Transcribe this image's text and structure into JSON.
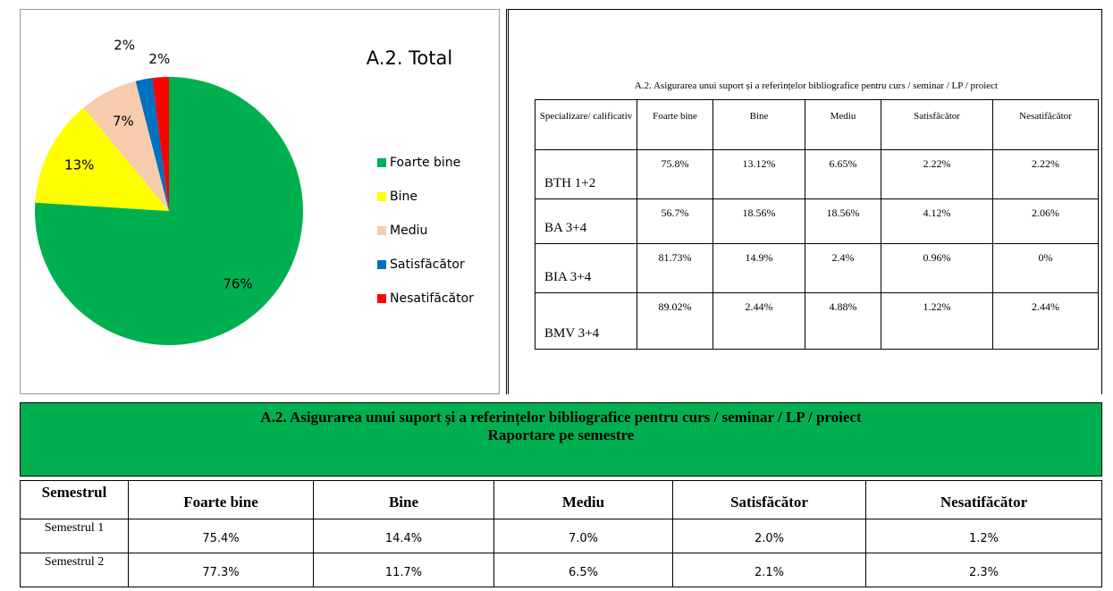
{
  "chart_data": {
    "type": "pie",
    "title": "A.2. Total",
    "categories": [
      "Foarte bine",
      "Bine",
      "Mediu",
      "Satisfăcător",
      "Nesatifăcător"
    ],
    "values": [
      76,
      13,
      7,
      2,
      2
    ],
    "value_labels": [
      "76%",
      "13%",
      "7%",
      "2%",
      "2%"
    ],
    "colors": [
      "#00b050",
      "#ffff00",
      "#f8cbad",
      "#0070c0",
      "#ff0000"
    ],
    "legend": "right"
  },
  "spec_table": {
    "title": "A.2. Asigurarea unui suport și a referințelor bibliografice pentru curs / seminar / LP / proiect",
    "header": [
      "Specializare/ calificativ",
      "Foarte bine",
      "Bine",
      "Mediu",
      "Satisfăcător",
      "Nesatifăcător"
    ],
    "rows": [
      [
        "BTH  1+2",
        "75.8%",
        "13.12%",
        "6.65%",
        "2.22%",
        "2.22%"
      ],
      [
        "BA  3+4",
        "56.7%",
        "18.56%",
        "18.56%",
        "4.12%",
        "2.06%"
      ],
      [
        "BIA  3+4",
        "81.73%",
        "14.9%",
        "2.4%",
        "0.96%",
        "0%"
      ],
      [
        "BMV  3+4",
        "89.02%",
        "2.44%",
        "4.88%",
        "1.22%",
        "2.44%"
      ]
    ]
  },
  "semester_table": {
    "title": "A.2. Asigurarea unui suport și a referințelor bibliografice pentru curs / seminar / LP / proiect",
    "subtitle": "Raportare pe semestre",
    "header": [
      "Semestrul",
      "Foarte bine",
      "Bine",
      "Mediu",
      "Satisfăcător",
      "Nesatifăcător"
    ],
    "rows": [
      [
        "Semestrul 1",
        "75.4%",
        "14.4%",
        "7.0%",
        "2.0%",
        "1.2%"
      ],
      [
        "Semestrul 2",
        "77.3%",
        "11.7%",
        "6.5%",
        "2.1%",
        "2.3%"
      ]
    ]
  }
}
